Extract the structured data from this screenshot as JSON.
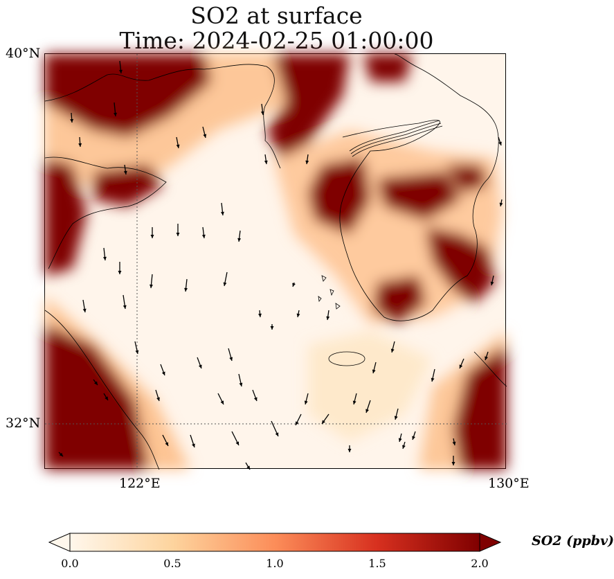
{
  "title": {
    "line1": "SO2 at surface",
    "line2": "Time: 2024-02-25 01:00:00"
  },
  "axes": {
    "lat_ticks": [
      {
        "label": "40°N"
      },
      {
        "label": "32°N"
      }
    ],
    "lon_ticks": [
      {
        "label": "122°E"
      },
      {
        "label": "130°E"
      }
    ],
    "gridlines": "dotted"
  },
  "colorbar": {
    "label": "SO2 (ppbv)",
    "min": 0.0,
    "max": 2.0,
    "extend": "both",
    "colormap": "OrRd",
    "ticks": [
      "0.0",
      "0.5",
      "1.0",
      "1.5",
      "2.0"
    ],
    "colors": [
      "#fff7ec",
      "#fdd49e",
      "#fc8d59",
      "#d7301f",
      "#7f0000"
    ]
  },
  "map": {
    "high_color": "#7f0000",
    "low_color": "#fff5eb",
    "features": [
      "coastlines",
      "country borders",
      "wind vectors"
    ]
  }
}
